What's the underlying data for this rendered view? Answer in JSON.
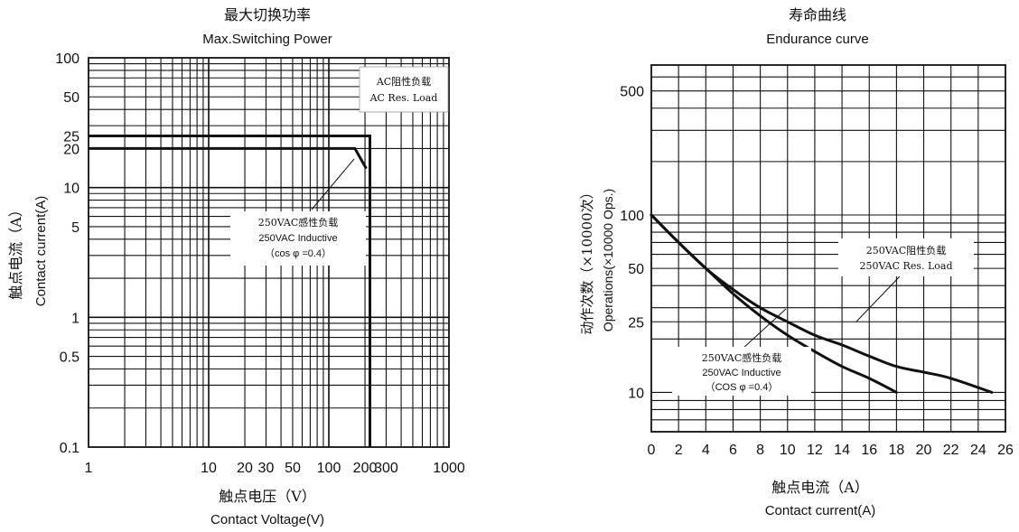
{
  "chart_data": [
    {
      "type": "line",
      "title_cn": "最大切换功率",
      "title": "Max.Switching Power",
      "xlabel_cn": "触点电压（V）",
      "xlabel": "Contact Voltage(V)",
      "ylabel_cn": "触点电流（A）",
      "ylabel": "Contact current(A)",
      "x_scale": "log",
      "y_scale": "log",
      "xlim": [
        1,
        1000
      ],
      "ylim": [
        0.1,
        100
      ],
      "x_ticks": [
        {
          "v": 1,
          "t": "1"
        },
        {
          "v": 10,
          "t": "10"
        },
        {
          "v": 20,
          "t": "20"
        },
        {
          "v": 30,
          "t": "30"
        },
        {
          "v": 50,
          "t": "50"
        },
        {
          "v": 100,
          "t": "100"
        },
        {
          "v": 200,
          "t": "200"
        },
        {
          "v": 300,
          "t": "300"
        },
        {
          "v": 1000,
          "t": "1000"
        }
      ],
      "y_ticks": [
        {
          "v": 100,
          "t": "100"
        },
        {
          "v": 50,
          "t": "50"
        },
        {
          "v": 25,
          "t": "25"
        },
        {
          "v": 20,
          "t": "20"
        },
        {
          "v": 10,
          "t": "10"
        },
        {
          "v": 5,
          "t": "5"
        },
        {
          "v": 1,
          "t": "1"
        },
        {
          "v": 0.5,
          "t": "0.5"
        },
        {
          "v": 0.1,
          "t": "0.1"
        }
      ],
      "grid": true,
      "series": [
        {
          "name": "AC Res. Load",
          "name_cn": "AC阻性负载",
          "points": [
            [
              1,
              25
            ],
            [
              220,
              25
            ],
            [
              220,
              0.1
            ]
          ]
        },
        {
          "name": "250VAC Inductive",
          "name_cn": "250VAC感性负载",
          "points": [
            [
              1,
              20
            ],
            [
              165,
              20
            ],
            [
              205,
              14
            ]
          ]
        }
      ],
      "annotations": [
        {
          "lines": [
            "AC阻性负载",
            "AC Res. Load"
          ]
        },
        {
          "lines": [
            "250VAC感性负载",
            "250VAC Inductive",
            "（cos φ =0.4）"
          ]
        }
      ]
    },
    {
      "type": "line",
      "title_cn": "寿命曲线",
      "title": "Endurance curve",
      "xlabel_cn": "触点电流（A）",
      "xlabel": "Contact current(A)",
      "ylabel_cn": "动作次数（×10000次）",
      "ylabel": "Operations(×10000 Ops.)",
      "x_scale": "linear",
      "y_scale": "log",
      "xlim": [
        0,
        26
      ],
      "ylim": [
        6,
        700
      ],
      "x_ticks": [
        {
          "v": 0,
          "t": "0"
        },
        {
          "v": 2,
          "t": "2"
        },
        {
          "v": 4,
          "t": "4"
        },
        {
          "v": 6,
          "t": "6"
        },
        {
          "v": 8,
          "t": "8"
        },
        {
          "v": 10,
          "t": "10"
        },
        {
          "v": 12,
          "t": "12"
        },
        {
          "v": 14,
          "t": "14"
        },
        {
          "v": 16,
          "t": "16"
        },
        {
          "v": 18,
          "t": "18"
        },
        {
          "v": 20,
          "t": "20"
        },
        {
          "v": 22,
          "t": "22"
        },
        {
          "v": 24,
          "t": "24"
        },
        {
          "v": 26,
          "t": "26"
        }
      ],
      "y_ticks": [
        {
          "v": 500,
          "t": "500"
        },
        {
          "v": 100,
          "t": "100"
        },
        {
          "v": 50,
          "t": "50"
        },
        {
          "v": 25,
          "t": "25"
        },
        {
          "v": 10,
          "t": "10"
        }
      ],
      "grid": true,
      "series": [
        {
          "name": "250VAC Res. Load",
          "name_cn": "250VAC阻性负载",
          "points": [
            [
              0,
              100
            ],
            [
              2,
              70
            ],
            [
              4,
              50
            ],
            [
              6,
              38
            ],
            [
              8,
              30
            ],
            [
              10,
              25
            ],
            [
              12,
              21
            ],
            [
              14,
              18.5
            ],
            [
              16,
              16
            ],
            [
              18,
              14
            ],
            [
              20,
              13
            ],
            [
              22,
              12
            ],
            [
              25,
              10
            ]
          ]
        },
        {
          "name": "250VAC Inductive",
          "name_cn": "250VAC感性负载",
          "points": [
            [
              0,
              100
            ],
            [
              2,
              70
            ],
            [
              4,
              50
            ],
            [
              6,
              36
            ],
            [
              8,
              27
            ],
            [
              10,
              21
            ],
            [
              12,
              17
            ],
            [
              14,
              14
            ],
            [
              16,
              12
            ],
            [
              18,
              10
            ]
          ]
        }
      ],
      "annotations": [
        {
          "lines": [
            "250VAC阻性负载",
            "250VAC Res. Load"
          ]
        },
        {
          "lines": [
            "250VAC感性负载",
            "250VAC Inductive",
            "（COS φ =0.4）"
          ]
        }
      ]
    }
  ]
}
